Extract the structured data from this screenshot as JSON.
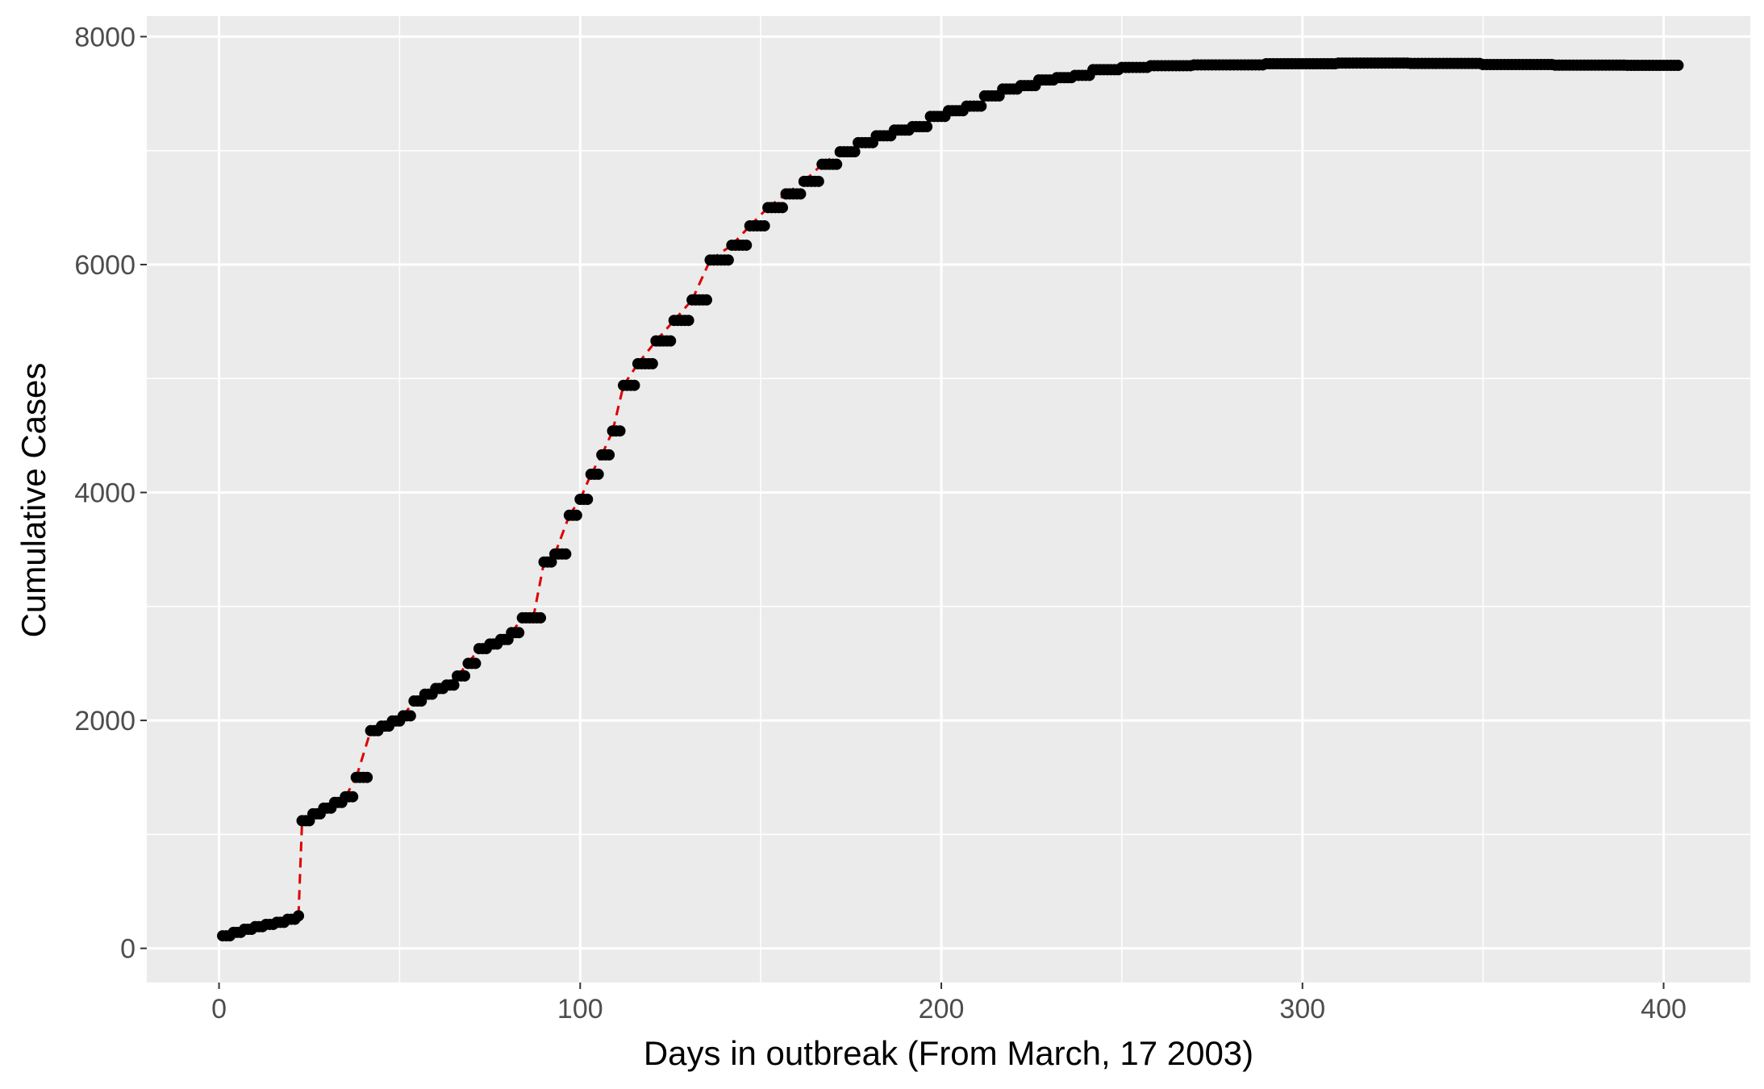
{
  "chart_data": {
    "type": "scatter",
    "title": "",
    "xlabel": "Days in outbreak (From March, 17 2003)",
    "ylabel": "Cumulative Cases",
    "xlim": [
      -20,
      424
    ],
    "ylim": [
      -300,
      8180
    ],
    "xticks": [
      0,
      100,
      200,
      300,
      400
    ],
    "yticks": [
      0,
      2000,
      4000,
      6000,
      8000
    ],
    "grid": true,
    "legend": "none",
    "colors": {
      "panel_background": "#ebebeb",
      "grid": "#ffffff",
      "points": "#000000",
      "connector": "#dd0000",
      "tick_label": "#4d4d4d"
    },
    "series": [
      {
        "marker": "point",
        "line_style": "dashed",
        "points": [
          [
            1,
            110
          ],
          [
            4,
            140
          ],
          [
            7,
            167
          ],
          [
            10,
            190
          ],
          [
            13,
            210
          ],
          [
            16,
            228
          ],
          [
            19,
            255
          ],
          [
            22,
            285
          ],
          [
            23,
            1120
          ],
          [
            26,
            1180
          ],
          [
            29,
            1230
          ],
          [
            32,
            1280
          ],
          [
            35,
            1330
          ],
          [
            38,
            1500
          ],
          [
            42,
            1910
          ],
          [
            45,
            1950
          ],
          [
            48,
            1995
          ],
          [
            51,
            2040
          ],
          [
            54,
            2170
          ],
          [
            57,
            2230
          ],
          [
            60,
            2280
          ],
          [
            63,
            2310
          ],
          [
            66,
            2390
          ],
          [
            69,
            2500
          ],
          [
            72,
            2630
          ],
          [
            75,
            2670
          ],
          [
            78,
            2710
          ],
          [
            81,
            2770
          ],
          [
            84,
            2900
          ],
          [
            87,
            2900
          ],
          [
            90,
            3390
          ],
          [
            93,
            3460
          ],
          [
            97,
            3800
          ],
          [
            100,
            3940
          ],
          [
            103,
            4160
          ],
          [
            106,
            4330
          ],
          [
            109,
            4540
          ],
          [
            112,
            4940
          ],
          [
            116,
            5130
          ],
          [
            121,
            5330
          ],
          [
            126,
            5510
          ],
          [
            131,
            5690
          ],
          [
            136,
            6040
          ],
          [
            142,
            6170
          ],
          [
            147,
            6340
          ],
          [
            152,
            6500
          ],
          [
            157,
            6620
          ],
          [
            162,
            6730
          ],
          [
            167,
            6880
          ],
          [
            172,
            6990
          ],
          [
            177,
            7070
          ],
          [
            182,
            7130
          ],
          [
            187,
            7180
          ],
          [
            192,
            7210
          ],
          [
            197,
            7300
          ],
          [
            202,
            7350
          ],
          [
            207,
            7390
          ],
          [
            212,
            7480
          ],
          [
            217,
            7540
          ],
          [
            222,
            7570
          ],
          [
            227,
            7620
          ],
          [
            232,
            7640
          ],
          [
            237,
            7660
          ],
          [
            242,
            7710
          ],
          [
            250,
            7730
          ],
          [
            258,
            7745
          ],
          [
            270,
            7752
          ],
          [
            290,
            7762
          ],
          [
            310,
            7768
          ],
          [
            330,
            7765
          ],
          [
            350,
            7755
          ],
          [
            370,
            7750
          ],
          [
            390,
            7748
          ],
          [
            404,
            7748
          ]
        ]
      }
    ]
  }
}
